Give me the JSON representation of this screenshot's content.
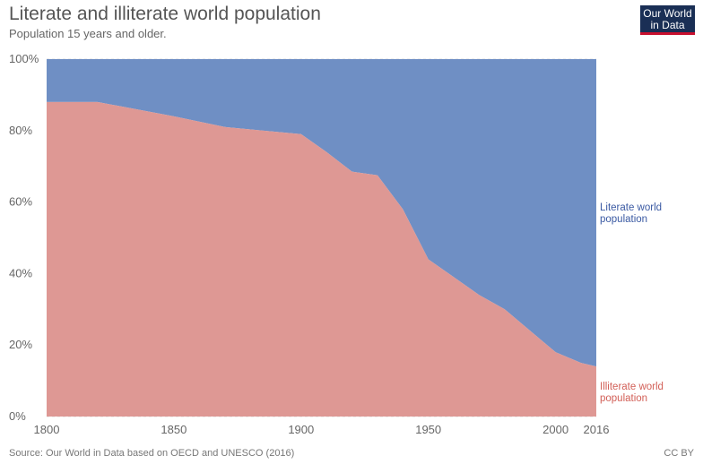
{
  "header": {
    "title": "Literate and illiterate world population",
    "subtitle": "Population 15 years and older."
  },
  "logo": {
    "line1": "Our World",
    "line2": "in Data"
  },
  "footer": {
    "source": "Source: Our World in Data based on OECD and UNESCO (2016)",
    "license": "CC BY"
  },
  "colors": {
    "literate": "#6f8fc4",
    "illiterate": "#de9894",
    "literate_text": "#3b5aa3",
    "illiterate_text": "#d25f57"
  },
  "chart_data": {
    "type": "area",
    "stacked": "percent",
    "title": "Literate and illiterate world population",
    "subtitle": "Population 15 years and older.",
    "xlim": [
      1800,
      2016
    ],
    "ylim": [
      0,
      100
    ],
    "x_ticks": [
      "1800",
      "1850",
      "1900",
      "1950",
      "2000",
      "2016"
    ],
    "y_ticks": [
      "0%",
      "20%",
      "40%",
      "60%",
      "80%",
      "100%"
    ],
    "grid": "horizontal dashed",
    "x": [
      1800,
      1820,
      1850,
      1870,
      1900,
      1910,
      1920,
      1930,
      1940,
      1950,
      1960,
      1970,
      1980,
      1990,
      2000,
      2010,
      2016
    ],
    "series": [
      {
        "name": "Illiterate world population",
        "values": [
          88,
          88,
          84,
          81,
          79,
          74,
          68.5,
          67.5,
          58,
          44,
          39,
          34,
          30,
          24,
          18,
          15,
          14
        ]
      },
      {
        "name": "Literate world population",
        "values": [
          12,
          12,
          16,
          19,
          21,
          26,
          31.5,
          32.5,
          42,
          56,
          61,
          66,
          70,
          76,
          82,
          85,
          86
        ]
      }
    ]
  }
}
